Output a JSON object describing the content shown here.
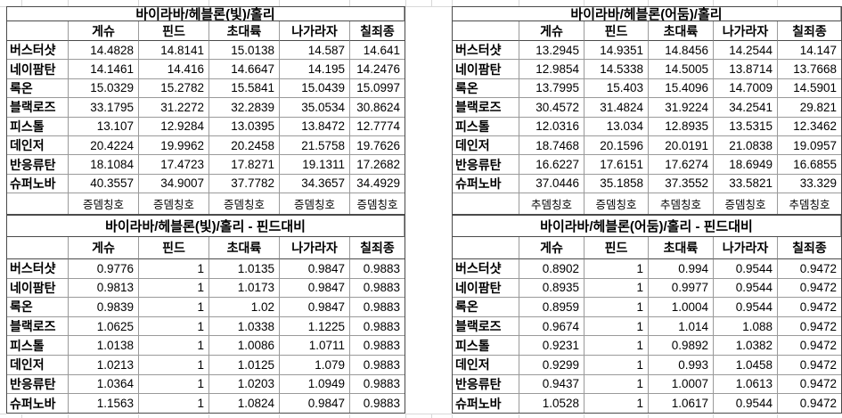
{
  "app": {
    "kind": "spreadsheet-damage-comparison"
  },
  "colors": {
    "background": "#ffffff",
    "text": "#000000",
    "table_outline": "#4a4a4a",
    "cell_grid": "#9a9a9a",
    "sheet_grid": "#d8d8d8"
  },
  "tables": [
    {
      "title": "바이라바/헤블론(빛)/홀리",
      "columns": [
        "게슈",
        "핀드",
        "초대륙",
        "나가라자",
        "칠죄종"
      ],
      "rows": [
        {
          "label": "버스터샷",
          "values": [
            "14.4828",
            "14.8141",
            "15.0138",
            "14.587",
            "14.641"
          ]
        },
        {
          "label": "네이팜탄",
          "values": [
            "14.1461",
            "14.416",
            "14.6647",
            "14.195",
            "14.2476"
          ]
        },
        {
          "label": "록온",
          "values": [
            "15.0329",
            "15.2782",
            "15.5841",
            "15.0439",
            "15.0997"
          ]
        },
        {
          "label": "블랙로즈",
          "values": [
            "33.1795",
            "31.2272",
            "32.2839",
            "35.0534",
            "30.8624"
          ]
        },
        {
          "label": "피스톨",
          "values": [
            "13.107",
            "12.9284",
            "13.0395",
            "13.8472",
            "12.7774"
          ]
        },
        {
          "label": "데인저",
          "values": [
            "20.4224",
            "19.9962",
            "20.2458",
            "21.5758",
            "19.7626"
          ]
        },
        {
          "label": "반응류탄",
          "values": [
            "18.1084",
            "17.4723",
            "17.8271",
            "19.1311",
            "17.2682"
          ]
        },
        {
          "label": "슈퍼노바",
          "values": [
            "40.3557",
            "34.9007",
            "37.7782",
            "34.3657",
            "34.4929"
          ]
        }
      ],
      "badges": [
        "증뎀칭호",
        "증뎀칭호",
        "증뎀칭호",
        "증뎀칭호",
        "증뎀칭호"
      ]
    },
    {
      "title": "바이라바/헤블론(어둠)/홀리",
      "columns": [
        "게슈",
        "핀드",
        "초대륙",
        "나가라자",
        "칠죄종"
      ],
      "rows": [
        {
          "label": "버스터샷",
          "values": [
            "13.2945",
            "14.9351",
            "14.8456",
            "14.2544",
            "14.147"
          ]
        },
        {
          "label": "네이팜탄",
          "values": [
            "12.9854",
            "14.5338",
            "14.5005",
            "13.8714",
            "13.7668"
          ]
        },
        {
          "label": "록온",
          "values": [
            "13.7995",
            "15.403",
            "15.4096",
            "14.7009",
            "14.5901"
          ]
        },
        {
          "label": "블랙로즈",
          "values": [
            "30.4572",
            "31.4824",
            "31.9224",
            "34.2541",
            "29.821"
          ]
        },
        {
          "label": "피스톨",
          "values": [
            "12.0316",
            "13.034",
            "12.8935",
            "13.5315",
            "12.3462"
          ]
        },
        {
          "label": "데인저",
          "values": [
            "18.7468",
            "20.1596",
            "20.0191",
            "21.0838",
            "19.0957"
          ]
        },
        {
          "label": "반응류탄",
          "values": [
            "16.6227",
            "17.6151",
            "17.6274",
            "18.6949",
            "16.6855"
          ]
        },
        {
          "label": "슈퍼노바",
          "values": [
            "37.0446",
            "35.1858",
            "37.3552",
            "33.5821",
            "33.329"
          ]
        }
      ],
      "badges": [
        "추뎀칭호",
        "증뎀칭호",
        "추뎀칭호",
        "증뎀칭호",
        "추뎀칭호"
      ]
    },
    {
      "title": "바이라바/헤블론(빛)/홀리 - 핀드대비",
      "columns": [
        "게슈",
        "핀드",
        "초대륙",
        "나가라자",
        "칠죄종"
      ],
      "rows": [
        {
          "label": "버스터샷",
          "values": [
            "0.9776",
            "1",
            "1.0135",
            "0.9847",
            "0.9883"
          ]
        },
        {
          "label": "네이팜탄",
          "values": [
            "0.9813",
            "1",
            "1.0173",
            "0.9847",
            "0.9883"
          ]
        },
        {
          "label": "록온",
          "values": [
            "0.9839",
            "1",
            "1.02",
            "0.9847",
            "0.9883"
          ]
        },
        {
          "label": "블랙로즈",
          "values": [
            "1.0625",
            "1",
            "1.0338",
            "1.1225",
            "0.9883"
          ]
        },
        {
          "label": "피스톨",
          "values": [
            "1.0138",
            "1",
            "1.0086",
            "1.0711",
            "0.9883"
          ]
        },
        {
          "label": "데인저",
          "values": [
            "1.0213",
            "1",
            "1.0125",
            "1.079",
            "0.9883"
          ]
        },
        {
          "label": "반응류탄",
          "values": [
            "1.0364",
            "1",
            "1.0203",
            "1.0949",
            "0.9883"
          ]
        },
        {
          "label": "슈퍼노바",
          "values": [
            "1.1563",
            "1",
            "1.0824",
            "0.9847",
            "0.9883"
          ]
        }
      ],
      "badges": null
    },
    {
      "title": "바이라바/헤블론(어둠)/홀리 - 핀드대비",
      "columns": [
        "게슈",
        "핀드",
        "초대륙",
        "나가라자",
        "칠죄종"
      ],
      "rows": [
        {
          "label": "버스터샷",
          "values": [
            "0.8902",
            "1",
            "0.994",
            "0.9544",
            "0.9472"
          ]
        },
        {
          "label": "네이팜탄",
          "values": [
            "0.8935",
            "1",
            "0.9977",
            "0.9544",
            "0.9472"
          ]
        },
        {
          "label": "록온",
          "values": [
            "0.8959",
            "1",
            "1.0004",
            "0.9544",
            "0.9472"
          ]
        },
        {
          "label": "블랙로즈",
          "values": [
            "0.9674",
            "1",
            "1.014",
            "1.088",
            "0.9472"
          ]
        },
        {
          "label": "피스톨",
          "values": [
            "0.9231",
            "1",
            "0.9892",
            "1.0382",
            "0.9472"
          ]
        },
        {
          "label": "데인저",
          "values": [
            "0.9299",
            "1",
            "0.993",
            "1.0458",
            "0.9472"
          ]
        },
        {
          "label": "반응류탄",
          "values": [
            "0.9437",
            "1",
            "1.0007",
            "1.0613",
            "0.9472"
          ]
        },
        {
          "label": "슈퍼노바",
          "values": [
            "1.0528",
            "1",
            "1.0617",
            "0.9544",
            "0.9472"
          ]
        }
      ],
      "badges": null
    }
  ]
}
